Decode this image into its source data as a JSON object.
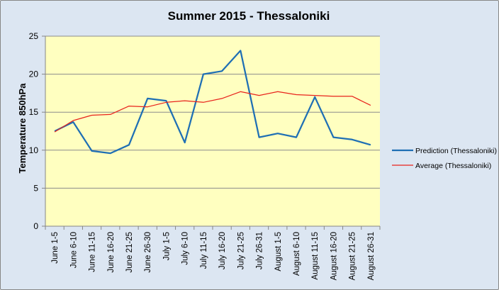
{
  "chart_data": {
    "type": "line",
    "title": "Summer 2015 - Thessaloniki",
    "xlabel": "",
    "ylabel": "Temperature 850hPa",
    "ylim": [
      0,
      25
    ],
    "yticks": [
      0,
      5,
      10,
      15,
      20,
      25
    ],
    "grid": true,
    "legend_position": "right",
    "plot_background": "#ffffc0",
    "chart_background": "#dce6f2",
    "categories": [
      "June 1-5",
      "June 6-10",
      "June 11-15",
      "June 16-20",
      "June 21-25",
      "June 26-30",
      "July 1-5",
      "July 6-10",
      "July 11-15",
      "July 16-20",
      "July 21-25",
      "July 26-31",
      "August 1-5",
      "August 6-10",
      "August 11-15",
      "August 16-20",
      "August 21-25",
      "August 26-31"
    ],
    "series": [
      {
        "name": "Prediction (Thessaloniki)",
        "color": "#1f6fb4",
        "values": [
          12.5,
          13.7,
          9.9,
          9.6,
          10.7,
          16.8,
          16.5,
          11.0,
          20.0,
          20.4,
          23.1,
          11.7,
          12.2,
          11.7,
          17.0,
          11.7,
          11.4,
          10.7
        ]
      },
      {
        "name": "Average (Thessaloniki)",
        "color": "#e8231c",
        "values": [
          12.4,
          13.9,
          14.6,
          14.7,
          15.8,
          15.7,
          16.3,
          16.5,
          16.3,
          16.8,
          17.7,
          17.2,
          17.7,
          17.3,
          17.2,
          17.1,
          17.1,
          15.9
        ]
      }
    ]
  }
}
